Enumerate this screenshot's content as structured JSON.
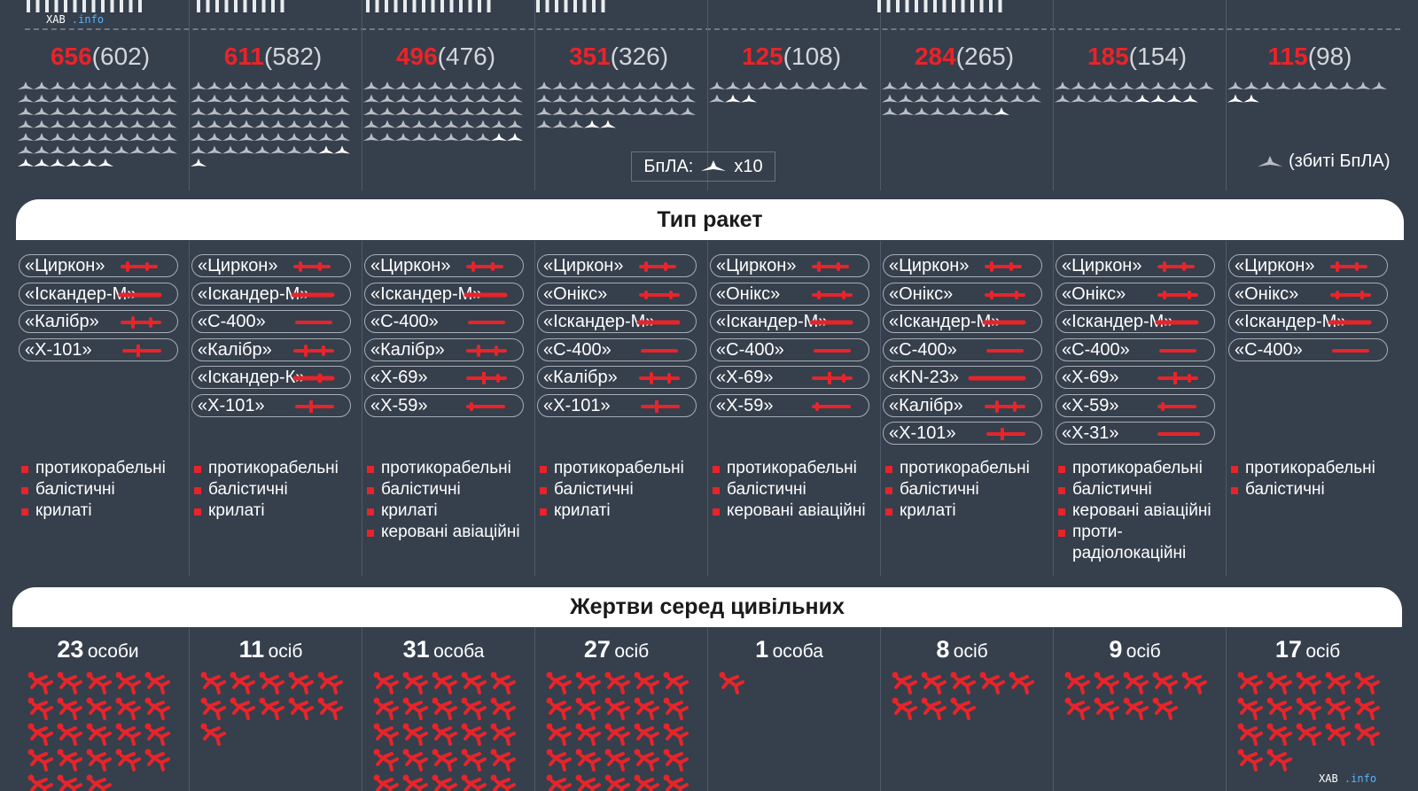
{
  "watermark": {
    "prefix": "ХАВ",
    "suffix": ".info"
  },
  "columns": [
    {
      "count": "656",
      "prev": "(602)",
      "uav_downed_tens": 60,
      "missiles": [
        {
          "label": "«Циркон»",
          "icon": "missile-zircon"
        },
        {
          "label": "«Іскандер-М»",
          "icon": "missile-iskander-m"
        },
        {
          "label": "«Калібр»",
          "icon": "missile-kalibr"
        },
        {
          "label": "«Х-101»",
          "icon": "missile-kh101"
        }
      ],
      "categories": [
        "протикорабельні",
        "балістичні",
        "крилаті"
      ],
      "victims": {
        "n": "23",
        "unit": "особи",
        "value": 23
      }
    },
    {
      "count": "611",
      "prev": "(582)",
      "uav_downed_tens": 58,
      "missiles": [
        {
          "label": "«Циркон»",
          "icon": "missile-zircon"
        },
        {
          "label": "«Іскандер-М»",
          "icon": "missile-iskander-m"
        },
        {
          "label": "«С-400»",
          "icon": "missile-s400"
        },
        {
          "label": "«Калібр»",
          "icon": "missile-kalibr"
        },
        {
          "label": "«Іскандер-К»",
          "icon": "missile-iskander-k"
        },
        {
          "label": "«Х-101»",
          "icon": "missile-kh101"
        }
      ],
      "categories": [
        "протикорабельні",
        "балістичні",
        "крилаті"
      ],
      "victims": {
        "n": "11",
        "unit": "осіб",
        "value": 11
      }
    },
    {
      "count": "496",
      "prev": "(476)",
      "uav_downed_tens": 48,
      "missiles": [
        {
          "label": "«Циркон»",
          "icon": "missile-zircon"
        },
        {
          "label": "«Іскандер-М»",
          "icon": "missile-iskander-m"
        },
        {
          "label": "«С-400»",
          "icon": "missile-s400"
        },
        {
          "label": "«Калібр»",
          "icon": "missile-kalibr"
        },
        {
          "label": "«Х-69»",
          "icon": "missile-kh69"
        },
        {
          "label": "«Х-59»",
          "icon": "missile-kh59"
        }
      ],
      "categories": [
        "протикорабельні",
        "балістичні",
        "крилаті",
        "керовані авіаційні"
      ],
      "victims": {
        "n": "31",
        "unit": "особа",
        "value": 31
      }
    },
    {
      "count": "351",
      "prev": "(326)",
      "uav_downed_tens": 33,
      "missiles": [
        {
          "label": "«Циркон»",
          "icon": "missile-zircon"
        },
        {
          "label": "«Онікс»",
          "icon": "missile-oniks"
        },
        {
          "label": "«Іскандер-М»",
          "icon": "missile-iskander-m"
        },
        {
          "label": "«С-400»",
          "icon": "missile-s400"
        },
        {
          "label": "«Калібр»",
          "icon": "missile-kalibr"
        },
        {
          "label": "«Х-101»",
          "icon": "missile-kh101"
        }
      ],
      "categories": [
        "протикорабельні",
        "балістичні",
        "крилаті"
      ],
      "victims": {
        "n": "27",
        "unit": "осіб",
        "value": 27
      }
    },
    {
      "count": "125",
      "prev": "(108)",
      "uav_downed_tens": 11,
      "missiles": [
        {
          "label": "«Циркон»",
          "icon": "missile-zircon"
        },
        {
          "label": "«Онікс»",
          "icon": "missile-oniks"
        },
        {
          "label": "«Іскандер-М»",
          "icon": "missile-iskander-m"
        },
        {
          "label": "«С-400»",
          "icon": "missile-s400"
        },
        {
          "label": "«Х-69»",
          "icon": "missile-kh69"
        },
        {
          "label": "«Х-59»",
          "icon": "missile-kh59"
        }
      ],
      "categories": [
        "протикорабельні",
        "балістичні",
        "керовані авіаційні"
      ],
      "victims": {
        "n": "1",
        "unit": "особа",
        "value": 1
      }
    },
    {
      "count": "284",
      "prev": "(265)",
      "uav_downed_tens": 27,
      "missiles": [
        {
          "label": "«Циркон»",
          "icon": "missile-zircon"
        },
        {
          "label": "«Онікс»",
          "icon": "missile-oniks"
        },
        {
          "label": "«Іскандер-М»",
          "icon": "missile-iskander-m"
        },
        {
          "label": "«С-400»",
          "icon": "missile-s400"
        },
        {
          "label": "«KN-23»",
          "icon": "missile-kn23"
        },
        {
          "label": "«Калібр»",
          "icon": "missile-kalibr"
        },
        {
          "label": "«Х-101»",
          "icon": "missile-kh101"
        }
      ],
      "categories": [
        "протикорабельні",
        "балістичні",
        "крилаті"
      ],
      "victims": {
        "n": "8",
        "unit": "осіб",
        "value": 8
      }
    },
    {
      "count": "185",
      "prev": "(154)",
      "uav_downed_tens": 15,
      "missiles": [
        {
          "label": "«Циркон»",
          "icon": "missile-zircon"
        },
        {
          "label": "«Онікс»",
          "icon": "missile-oniks"
        },
        {
          "label": "«Іскандер-М»",
          "icon": "missile-iskander-m"
        },
        {
          "label": "«С-400»",
          "icon": "missile-s400"
        },
        {
          "label": "«Х-69»",
          "icon": "missile-kh69"
        },
        {
          "label": "«Х-59»",
          "icon": "missile-kh59"
        },
        {
          "label": "«Х-31»",
          "icon": "missile-kh31"
        }
      ],
      "categories": [
        "протикорабельні",
        "балістичні",
        "керовані авіаційні",
        "проти-радіолокаційні"
      ],
      "victims": {
        "n": "9",
        "unit": "осіб",
        "value": 9
      }
    },
    {
      "count": "115",
      "prev": "(98)",
      "uav_downed_tens": 10,
      "missiles": [
        {
          "label": "«Циркон»",
          "icon": "missile-zircon"
        },
        {
          "label": "«Онікс»",
          "icon": "missile-oniks"
        },
        {
          "label": "«Іскандер-М»",
          "icon": "missile-iskander-m"
        },
        {
          "label": "«С-400»",
          "icon": "missile-s400"
        }
      ],
      "categories": [
        "протикорабельні",
        "балістичні"
      ],
      "victims": {
        "n": "17",
        "unit": "осіб",
        "value": 17
      }
    }
  ],
  "legend": {
    "uav_label": "БпЛА:",
    "uav_multiplier": "x10",
    "downed_label": "(збиті БпЛА)",
    "icon": "drone-icon"
  },
  "sections": {
    "types": "Тип ракет",
    "victims": "Жертви серед цивільних"
  },
  "colors": {
    "background": "#363f4c",
    "accent": "#e8242a",
    "grey_icon": "#b9bec5",
    "white": "#ffffff"
  }
}
